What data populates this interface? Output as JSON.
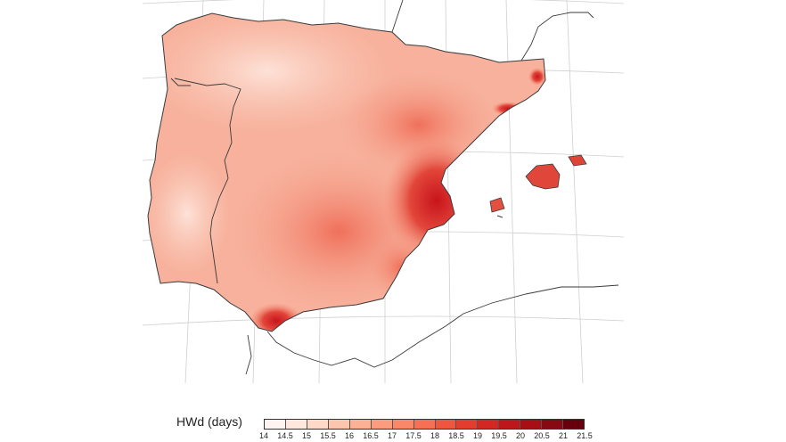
{
  "legend": {
    "title": "HWd (days)",
    "ticks": [
      "14",
      "14.5",
      "15",
      "15.5",
      "16",
      "16.5",
      "17",
      "17.5",
      "18",
      "18.5",
      "19",
      "19.5",
      "20",
      "20.5",
      "21",
      "21.5"
    ],
    "colors": [
      "#fff5f0",
      "#fee8de",
      "#fdd9c7",
      "#fcc6ae",
      "#fcb195",
      "#fb9c7f",
      "#fa876a",
      "#f67055",
      "#ef5640",
      "#e33d2f",
      "#d22722",
      "#bd161b",
      "#a50f15",
      "#870a12",
      "#67000d"
    ]
  },
  "map": {
    "region": "Iberian Peninsula and Balearic Islands",
    "landmask_color": "#f6b3a0",
    "hotspot_color": "#d62a24",
    "background": "#ffffff",
    "gridline_color": "#c8c8c8",
    "border_color": "#3a3a3a"
  }
}
